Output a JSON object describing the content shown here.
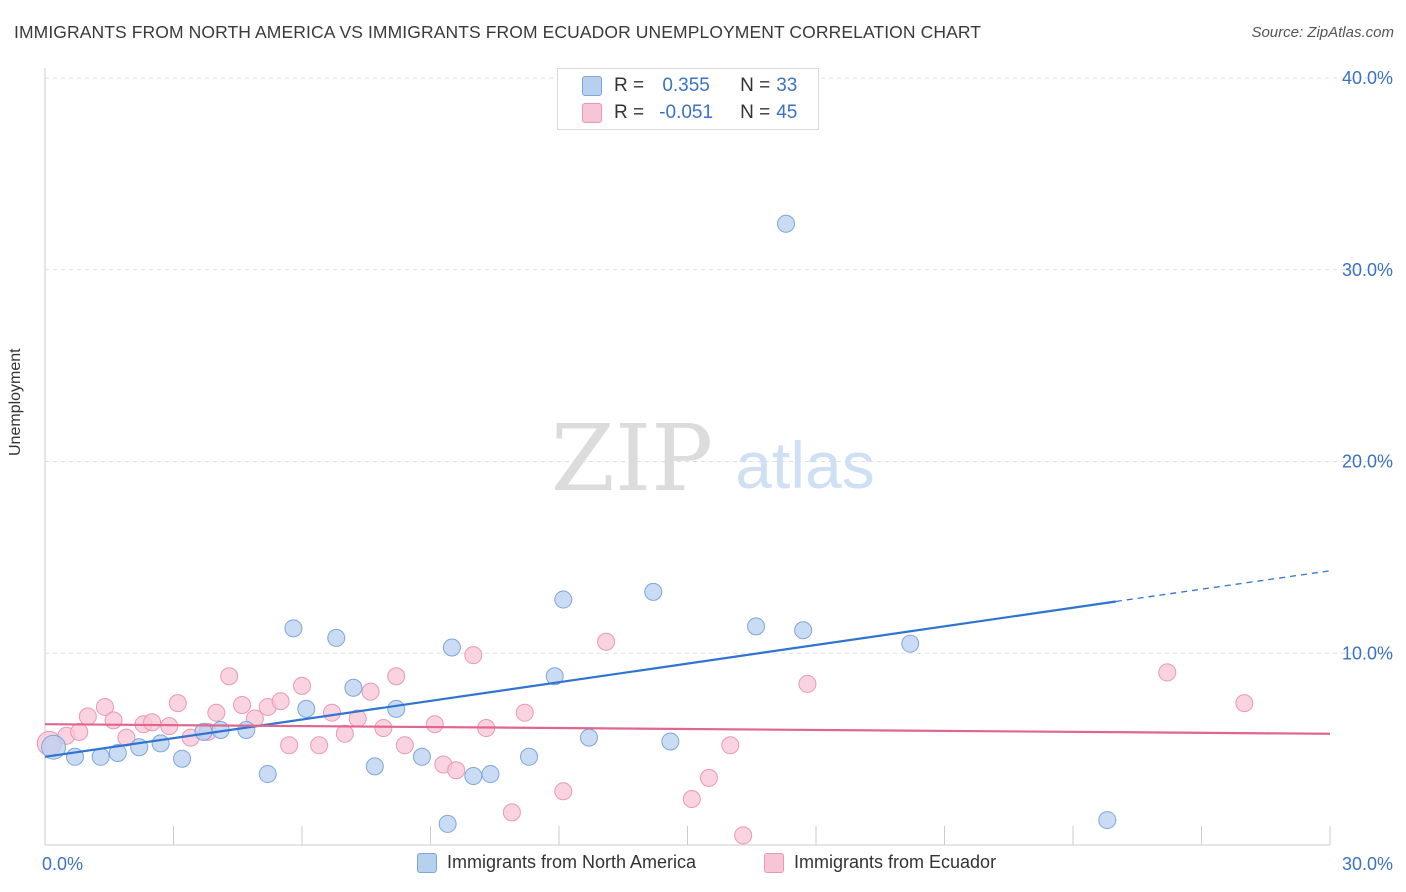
{
  "header": {
    "title": "IMMIGRANTS FROM NORTH AMERICA VS IMMIGRANTS FROM ECUADOR UNEMPLOYMENT CORRELATION CHART",
    "source": "Source: ZipAtlas.com"
  },
  "watermark": {
    "zip": "ZIP",
    "atlas": "atlas"
  },
  "legend_top": {
    "series1": {
      "r_label": "R =",
      "r_value": "0.355",
      "n_label": "N =",
      "n_value": "33"
    },
    "series2": {
      "r_label": "R =",
      "r_value": "-0.051",
      "n_label": "N =",
      "n_value": "45"
    }
  },
  "colors": {
    "blue_fill": "#b8d0f0",
    "blue_stroke": "#7ea6dc",
    "blue_line": "#2f74d0",
    "pink_fill": "#f7c6d6",
    "pink_stroke": "#ec97b5",
    "pink_line": "#e0658f",
    "tick_label": "#3a72c4",
    "grid": "#dddddd"
  },
  "chart_data": {
    "type": "scatter",
    "ylabel": "Unemployment",
    "xlim": [
      0,
      30
    ],
    "ylim": [
      0,
      40
    ],
    "x_tick_labels": [
      {
        "value": 0,
        "label": "0.0%"
      },
      {
        "value": 30,
        "label": "30.0%"
      }
    ],
    "y_tick_labels": [
      {
        "value": 10,
        "label": "10.0%"
      },
      {
        "value": 20,
        "label": "20.0%"
      },
      {
        "value": 30,
        "label": "30.0%"
      },
      {
        "value": 40,
        "label": "40.0%"
      }
    ],
    "grid": "horizontal dashed",
    "legend_placement": "bottom-center",
    "series": [
      {
        "name": "Immigrants from North America",
        "color": "blue",
        "trend": {
          "x0": 0,
          "y0": 4.6,
          "x1": 25.0,
          "y1": 12.7,
          "dashed_to_x": 30.0,
          "dashed_to_y": 14.3
        },
        "points": [
          [
            0.2,
            5.1
          ],
          [
            0.7,
            4.6
          ],
          [
            1.3,
            4.6
          ],
          [
            1.7,
            4.8
          ],
          [
            2.2,
            5.1
          ],
          [
            2.7,
            5.3
          ],
          [
            3.2,
            4.5
          ],
          [
            3.7,
            5.9
          ],
          [
            4.1,
            6.0
          ],
          [
            4.7,
            6.0
          ],
          [
            5.2,
            3.7
          ],
          [
            5.8,
            11.3
          ],
          [
            6.1,
            7.1
          ],
          [
            6.8,
            10.8
          ],
          [
            7.2,
            8.2
          ],
          [
            7.7,
            4.1
          ],
          [
            8.2,
            7.1
          ],
          [
            8.8,
            4.6
          ],
          [
            9.5,
            10.3
          ],
          [
            9.4,
            1.1
          ],
          [
            10.0,
            3.6
          ],
          [
            10.4,
            3.7
          ],
          [
            11.3,
            4.6
          ],
          [
            11.9,
            8.8
          ],
          [
            12.1,
            12.8
          ],
          [
            12.7,
            5.6
          ],
          [
            14.2,
            13.2
          ],
          [
            14.6,
            5.4
          ],
          [
            16.6,
            11.4
          ],
          [
            17.3,
            32.4
          ],
          [
            17.7,
            11.2
          ],
          [
            20.2,
            10.5
          ],
          [
            24.8,
            1.3
          ]
        ]
      },
      {
        "name": "Immigrants from Ecuador",
        "color": "pink",
        "trend": {
          "x0": 0,
          "y0": 6.3,
          "x1": 30.0,
          "y1": 5.8
        },
        "points": [
          [
            0.1,
            5.3
          ],
          [
            0.5,
            5.7
          ],
          [
            0.8,
            5.9
          ],
          [
            1.0,
            6.7
          ],
          [
            1.4,
            7.2
          ],
          [
            1.6,
            6.5
          ],
          [
            1.9,
            5.6
          ],
          [
            2.3,
            6.3
          ],
          [
            2.5,
            6.4
          ],
          [
            2.9,
            6.2
          ],
          [
            3.1,
            7.4
          ],
          [
            3.4,
            5.6
          ],
          [
            3.8,
            5.9
          ],
          [
            4.0,
            6.9
          ],
          [
            4.3,
            8.8
          ],
          [
            4.6,
            7.3
          ],
          [
            4.9,
            6.6
          ],
          [
            5.2,
            7.2
          ],
          [
            5.5,
            7.5
          ],
          [
            5.7,
            5.2
          ],
          [
            6.0,
            8.3
          ],
          [
            6.4,
            5.2
          ],
          [
            6.7,
            6.9
          ],
          [
            7.0,
            5.8
          ],
          [
            7.3,
            6.6
          ],
          [
            7.6,
            8.0
          ],
          [
            7.9,
            6.1
          ],
          [
            8.2,
            8.8
          ],
          [
            8.4,
            5.2
          ],
          [
            9.1,
            6.3
          ],
          [
            9.3,
            4.2
          ],
          [
            9.6,
            3.9
          ],
          [
            10.0,
            9.9
          ],
          [
            10.3,
            6.1
          ],
          [
            10.9,
            1.7
          ],
          [
            11.2,
            6.9
          ],
          [
            12.1,
            2.8
          ],
          [
            13.1,
            10.6
          ],
          [
            15.1,
            2.4
          ],
          [
            15.5,
            3.5
          ],
          [
            16.0,
            5.2
          ],
          [
            16.3,
            0.5
          ],
          [
            17.8,
            8.4
          ],
          [
            26.2,
            9.0
          ],
          [
            28.0,
            7.4
          ]
        ]
      }
    ]
  },
  "legend_bottom": {
    "item1": "Immigrants from North America",
    "item2": "Immigrants from Ecuador"
  }
}
